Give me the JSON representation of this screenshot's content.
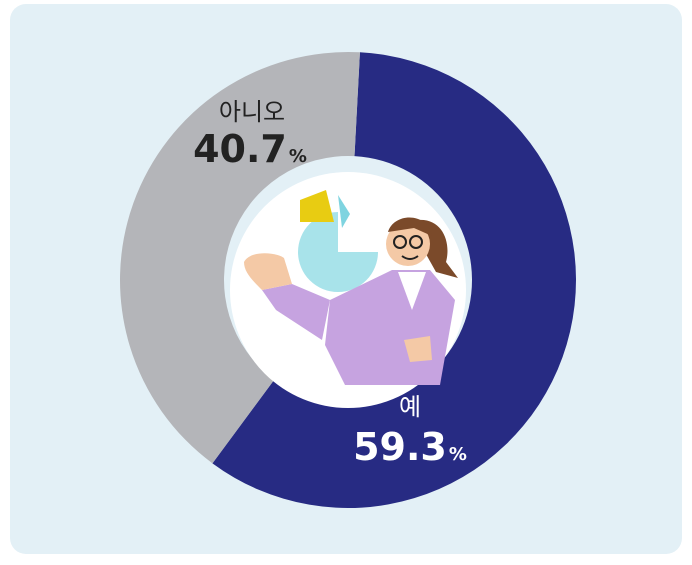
{
  "chart_data": {
    "type": "donut",
    "categories": [
      "예",
      "아니오"
    ],
    "values": [
      59.3,
      40.7
    ],
    "unit": "%",
    "series_colors": [
      "#272b83",
      "#b4b5b9"
    ],
    "label_colors": [
      "#ffffff",
      "#222222"
    ]
  }
}
